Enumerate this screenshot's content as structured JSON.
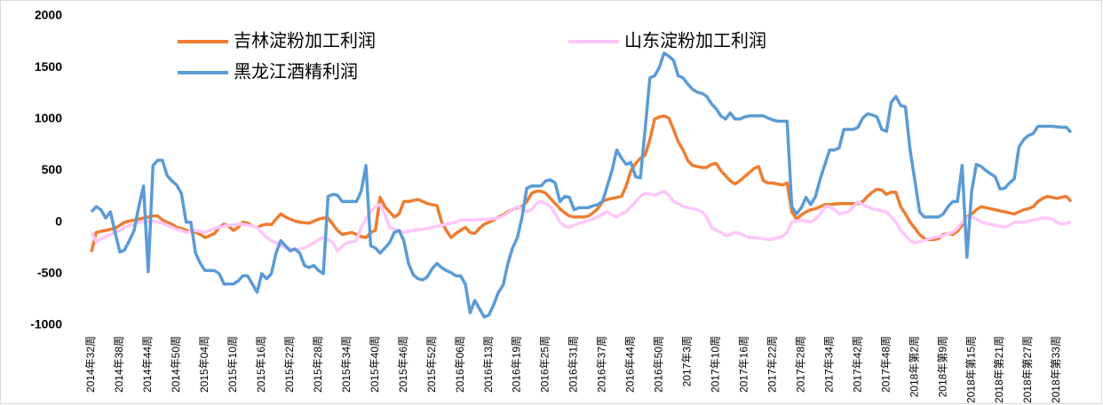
{
  "chart_data": {
    "type": "line",
    "categories": [
      "2014年32周",
      null,
      null,
      null,
      null,
      null,
      "2014年38周",
      null,
      null,
      null,
      null,
      null,
      "2014年44周",
      null,
      null,
      null,
      null,
      null,
      "2014年50周",
      null,
      null,
      null,
      null,
      null,
      "2015年04周",
      null,
      null,
      null,
      null,
      null,
      "2015年10周",
      null,
      null,
      null,
      null,
      null,
      "2015年16周",
      null,
      null,
      null,
      null,
      null,
      "2015年22周",
      null,
      null,
      null,
      null,
      null,
      "2015年28周",
      null,
      null,
      null,
      null,
      null,
      "2015年34周",
      null,
      null,
      null,
      null,
      null,
      "2015年40周",
      null,
      null,
      null,
      null,
      null,
      "2015年46周",
      null,
      null,
      null,
      null,
      null,
      "2015年52周",
      null,
      null,
      null,
      null,
      null,
      "2016年06周",
      null,
      null,
      null,
      null,
      null,
      "2016年13周",
      null,
      null,
      null,
      null,
      null,
      "2016年19周",
      null,
      null,
      null,
      null,
      null,
      "2016年25周",
      null,
      null,
      null,
      null,
      null,
      "2016年31周",
      null,
      null,
      null,
      null,
      null,
      "2016年37周",
      null,
      null,
      null,
      null,
      null,
      "2016年44周",
      null,
      null,
      null,
      null,
      null,
      "2016年50周",
      null,
      null,
      null,
      null,
      null,
      "2017年3周",
      null,
      null,
      null,
      null,
      null,
      "2017年10周",
      null,
      null,
      null,
      null,
      null,
      "2017年16周",
      null,
      null,
      null,
      null,
      null,
      "2017年22周",
      null,
      null,
      null,
      null,
      null,
      "2017年28周",
      null,
      null,
      null,
      null,
      null,
      "2017年34周",
      null,
      null,
      null,
      null,
      null,
      "2017年42周",
      null,
      null,
      null,
      null,
      null,
      "2017年48周",
      null,
      null,
      null,
      null,
      null,
      "2018年第2周",
      null,
      null,
      null,
      null,
      null,
      "2018年第9周",
      null,
      null,
      null,
      null,
      null,
      "2018年第15周",
      null,
      null,
      null,
      null,
      null,
      "2018年第21周",
      null,
      null,
      null,
      null,
      null,
      "2018年第27周",
      null,
      null,
      null,
      null,
      null,
      "2018年第33周",
      null,
      null,
      null
    ],
    "series": [
      {
        "name": "吉林淀粉加工利润",
        "color": "#ed7d31",
        "values": [
          -290,
          -100,
          -90,
          -80,
          -70,
          -60,
          -30,
          0,
          10,
          20,
          30,
          40,
          50,
          60,
          60,
          20,
          0,
          -20,
          -50,
          -60,
          -80,
          -90,
          -100,
          -120,
          -150,
          -130,
          -110,
          -50,
          -20,
          -40,
          -80,
          -50,
          0,
          -10,
          -40,
          -50,
          -30,
          -20,
          -25,
          30,
          80,
          50,
          30,
          10,
          0,
          -5,
          -10,
          10,
          30,
          40,
          40,
          -20,
          -80,
          -120,
          -110,
          -100,
          -120,
          -140,
          -150,
          -100,
          -80,
          240,
          150,
          100,
          50,
          80,
          200,
          200,
          210,
          220,
          200,
          180,
          170,
          160,
          0,
          -80,
          -150,
          -110,
          -80,
          -50,
          -100,
          -110,
          -60,
          -20,
          0,
          20,
          50,
          70,
          100,
          120,
          140,
          150,
          200,
          280,
          300,
          300,
          280,
          230,
          180,
          130,
          90,
          60,
          50,
          50,
          50,
          60,
          90,
          130,
          200,
          220,
          230,
          240,
          250,
          350,
          500,
          570,
          620,
          650,
          800,
          1000,
          1020,
          1030,
          1010,
          900,
          780,
          700,
          600,
          550,
          540,
          530,
          530,
          560,
          570,
          500,
          450,
          400,
          370,
          400,
          440,
          480,
          520,
          540,
          400,
          380,
          380,
          370,
          360,
          380,
          100,
          30,
          70,
          100,
          120,
          130,
          150,
          170,
          170,
          175,
          180,
          180,
          180,
          180,
          180,
          200,
          250,
          290,
          320,
          310,
          270,
          290,
          290,
          150,
          80,
          0,
          -60,
          -120,
          -160,
          -170,
          -170,
          -160,
          -120,
          -110,
          -120,
          -90,
          -30,
          50,
          80,
          120,
          150,
          140,
          130,
          120,
          110,
          100,
          90,
          80,
          100,
          120,
          130,
          150,
          200,
          230,
          250,
          240,
          230,
          240,
          250,
          200
        ]
      },
      {
        "name": "山东淀粉加工利润",
        "color": "#ffc6fb",
        "values": [
          -100,
          -190,
          -160,
          -140,
          -120,
          -100,
          -80,
          -50,
          -30,
          -20,
          0,
          5,
          8,
          10,
          0,
          -10,
          -30,
          -50,
          -70,
          -80,
          -100,
          -90,
          -80,
          -90,
          -100,
          -80,
          -60,
          -50,
          -40,
          -30,
          -25,
          -20,
          -20,
          -30,
          -40,
          -50,
          -100,
          -150,
          -180,
          -200,
          -230,
          -250,
          -260,
          -270,
          -260,
          -250,
          -230,
          -200,
          -170,
          -150,
          -170,
          -200,
          -280,
          -230,
          -200,
          -190,
          -180,
          -50,
          30,
          100,
          150,
          170,
          80,
          -50,
          -70,
          -80,
          -100,
          -90,
          -80,
          -75,
          -70,
          -60,
          -50,
          -40,
          -30,
          -20,
          -10,
          0,
          20,
          20,
          20,
          20,
          25,
          30,
          30,
          35,
          40,
          60,
          90,
          120,
          150,
          130,
          100,
          120,
          180,
          200,
          180,
          150,
          80,
          0,
          -40,
          -50,
          -30,
          -10,
          0,
          20,
          30,
          50,
          80,
          100,
          70,
          50,
          80,
          100,
          150,
          200,
          250,
          280,
          270,
          260,
          280,
          300,
          260,
          200,
          180,
          150,
          140,
          130,
          120,
          100,
          50,
          -50,
          -80,
          -100,
          -130,
          -120,
          -100,
          -110,
          -130,
          -150,
          -150,
          -155,
          -160,
          -170,
          -165,
          -150,
          -140,
          -100,
          0,
          10,
          20,
          10,
          0,
          30,
          80,
          150,
          150,
          120,
          80,
          90,
          100,
          150,
          200,
          170,
          150,
          130,
          120,
          110,
          100,
          50,
          0,
          -80,
          -130,
          -180,
          -200,
          -190,
          -180,
          -160,
          -150,
          -140,
          -130,
          -110,
          -100,
          -60,
          0,
          40,
          50,
          30,
          0,
          -10,
          -20,
          -30,
          -40,
          -50,
          -30,
          0,
          0,
          0,
          10,
          20,
          30,
          40,
          40,
          30,
          0,
          -20,
          -10,
          0
        ]
      },
      {
        "name": "黑龙江酒精利润",
        "color": "#5b9bd5",
        "values": [
          100,
          150,
          120,
          40,
          100,
          -100,
          -290,
          -270,
          -180,
          -80,
          150,
          350,
          -480,
          550,
          600,
          600,
          450,
          400,
          360,
          280,
          0,
          0,
          -300,
          -400,
          -470,
          -470,
          -470,
          -500,
          -600,
          -600,
          -600,
          -570,
          -520,
          -520,
          -600,
          -680,
          -500,
          -550,
          -500,
          -300,
          -180,
          -230,
          -280,
          -260,
          -300,
          -420,
          -440,
          -420,
          -470,
          -500,
          250,
          270,
          260,
          200,
          200,
          200,
          200,
          300,
          550,
          -230,
          -250,
          -300,
          -250,
          -200,
          -100,
          -80,
          -180,
          -400,
          -510,
          -550,
          -560,
          -530,
          -450,
          -400,
          -440,
          -470,
          -490,
          -520,
          -520,
          -600,
          -880,
          -760,
          -840,
          -920,
          -900,
          -800,
          -680,
          -610,
          -400,
          -250,
          -150,
          50,
          330,
          350,
          350,
          350,
          400,
          410,
          380,
          200,
          250,
          240,
          120,
          140,
          140,
          140,
          160,
          170,
          200,
          350,
          500,
          700,
          620,
          560,
          580,
          440,
          430,
          900,
          1400,
          1420,
          1500,
          1640,
          1610,
          1570,
          1420,
          1400,
          1340,
          1290,
          1260,
          1250,
          1220,
          1150,
          1100,
          1030,
          1000,
          1060,
          1000,
          1000,
          1020,
          1030,
          1030,
          1030,
          1030,
          1010,
          990,
          980,
          980,
          980,
          150,
          80,
          140,
          240,
          170,
          250,
          420,
          560,
          700,
          700,
          720,
          900,
          900,
          900,
          920,
          1010,
          1050,
          1040,
          1020,
          900,
          880,
          1160,
          1220,
          1130,
          1120,
          700,
          400,
          100,
          50,
          50,
          50,
          50,
          80,
          150,
          200,
          200,
          550,
          -340,
          300,
          560,
          540,
          500,
          470,
          440,
          320,
          330,
          380,
          420,
          730,
          800,
          840,
          860,
          930,
          930,
          930,
          930,
          925,
          920,
          920,
          870
        ]
      }
    ],
    "ylim": [
      -1000,
      2000
    ],
    "yticks": [
      -1000,
      -500,
      0,
      500,
      1000,
      1500,
      2000
    ]
  }
}
